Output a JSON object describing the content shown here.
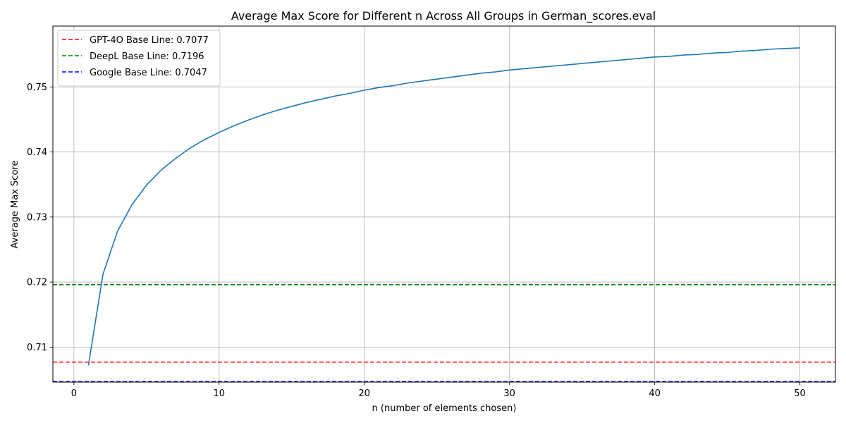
{
  "chart_data": {
    "type": "line",
    "title": "Average Max Score for Different n Across All Groups in German_scores.eval",
    "xlabel": "n (number of elements chosen)",
    "ylabel": "Average Max Score",
    "xlim": [
      -1.45,
      52.45
    ],
    "ylim": [
      0.70462,
      0.75935
    ],
    "x_ticks": [
      0,
      10,
      20,
      30,
      40,
      50
    ],
    "y_ticks": [
      0.71,
      0.72,
      0.73,
      0.74,
      0.75
    ],
    "grid": true,
    "legend_position": "top-left",
    "series": [
      {
        "color": "#1f77b4",
        "x": [
          1,
          2,
          3,
          4,
          5,
          6,
          7,
          8,
          9,
          10,
          11,
          12,
          13,
          14,
          15,
          16,
          17,
          18,
          19,
          20,
          21,
          22,
          23,
          24,
          25,
          26,
          27,
          28,
          29,
          30,
          31,
          32,
          33,
          34,
          35,
          36,
          37,
          38,
          39,
          40,
          41,
          42,
          43,
          44,
          45,
          46,
          47,
          48,
          49,
          50
        ],
        "values": [
          0.7072,
          0.7212,
          0.7278,
          0.7319,
          0.7349,
          0.7372,
          0.739,
          0.7406,
          0.7419,
          0.743,
          0.744,
          0.7449,
          0.7457,
          0.7464,
          0.747,
          0.7476,
          0.7481,
          0.7486,
          0.749,
          0.7495,
          0.7499,
          0.7502,
          0.7506,
          0.7509,
          0.7512,
          0.7515,
          0.7518,
          0.7521,
          0.7523,
          0.7526,
          0.7528,
          0.753,
          0.7532,
          0.7534,
          0.7536,
          0.7538,
          0.754,
          0.7542,
          0.7544,
          0.7546,
          0.7547,
          0.7549,
          0.755,
          0.7552,
          0.7553,
          0.7555,
          0.7556,
          0.7558,
          0.7559,
          0.756
        ]
      }
    ],
    "baselines": [
      {
        "name": "GPT-4O Base Line: 0.7077",
        "value": 0.7077,
        "color": "#ff0000"
      },
      {
        "name": "DeepL Base Line: 0.7196",
        "value": 0.7196,
        "color": "#008000"
      },
      {
        "name": "Google Base Line: 0.7047",
        "value": 0.7047,
        "color": "#0000ff"
      }
    ]
  }
}
